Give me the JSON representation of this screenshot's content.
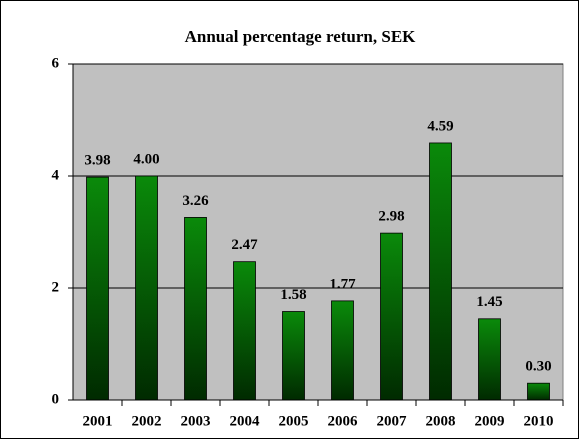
{
  "chart_data": {
    "type": "bar",
    "title": "Annual percentage return, SEK",
    "categories": [
      "2001",
      "2002",
      "2003",
      "2004",
      "2005",
      "2006",
      "2007",
      "2008",
      "2009",
      "2010"
    ],
    "values": [
      3.98,
      4.0,
      3.26,
      2.47,
      1.58,
      1.77,
      2.98,
      4.59,
      1.45,
      0.3
    ],
    "value_labels": [
      "3.98",
      "4.00",
      "3.26",
      "2.47",
      "1.58",
      "1.77",
      "2.98",
      "4.59",
      "1.45",
      "0.30"
    ],
    "color": "#0a8a0a",
    "ylim": [
      0,
      6
    ],
    "yticks": [
      0,
      2,
      4,
      6
    ],
    "grid": true
  }
}
